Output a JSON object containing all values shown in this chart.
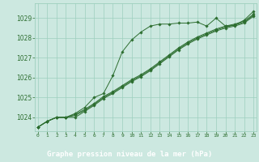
{
  "title": "Graphe pression niveau de la mer (hPa)",
  "background_color": "#cce8e0",
  "label_bg_color": "#2d6e30",
  "grid_color": "#9ecfbe",
  "line_color": "#2d6e30",
  "x_ticks": [
    0,
    1,
    2,
    3,
    4,
    5,
    6,
    7,
    8,
    9,
    10,
    11,
    12,
    13,
    14,
    15,
    16,
    17,
    18,
    19,
    20,
    21,
    22,
    23
  ],
  "y_ticks": [
    1024,
    1025,
    1026,
    1027,
    1028,
    1029
  ],
  "ylim": [
    1023.3,
    1029.75
  ],
  "xlim": [
    -0.3,
    23.3
  ],
  "series": [
    [
      1023.5,
      1023.8,
      1024.0,
      1024.0,
      1024.2,
      1024.5,
      1025.0,
      1025.2,
      1026.1,
      1027.3,
      1027.9,
      1028.3,
      1028.6,
      1028.7,
      1028.7,
      1028.75,
      1028.75,
      1028.8,
      1028.6,
      1029.0,
      1028.6,
      1028.65,
      1028.9,
      1029.35
    ],
    [
      1023.5,
      1023.8,
      1024.0,
      1024.0,
      1024.0,
      1024.3,
      1024.6,
      1024.95,
      1025.2,
      1025.5,
      1025.8,
      1026.05,
      1026.35,
      1026.7,
      1027.05,
      1027.4,
      1027.7,
      1027.95,
      1028.15,
      1028.35,
      1028.5,
      1028.6,
      1028.75,
      1029.1
    ],
    [
      1023.5,
      1023.8,
      1024.0,
      1024.0,
      1024.1,
      1024.35,
      1024.65,
      1025.0,
      1025.25,
      1025.55,
      1025.85,
      1026.1,
      1026.4,
      1026.75,
      1027.1,
      1027.45,
      1027.75,
      1028.0,
      1028.2,
      1028.4,
      1028.55,
      1028.65,
      1028.8,
      1029.15
    ],
    [
      1023.5,
      1023.8,
      1024.0,
      1024.0,
      1024.15,
      1024.4,
      1024.7,
      1025.05,
      1025.3,
      1025.6,
      1025.9,
      1026.15,
      1026.45,
      1026.8,
      1027.15,
      1027.5,
      1027.8,
      1028.05,
      1028.25,
      1028.45,
      1028.6,
      1028.7,
      1028.85,
      1029.2
    ]
  ]
}
